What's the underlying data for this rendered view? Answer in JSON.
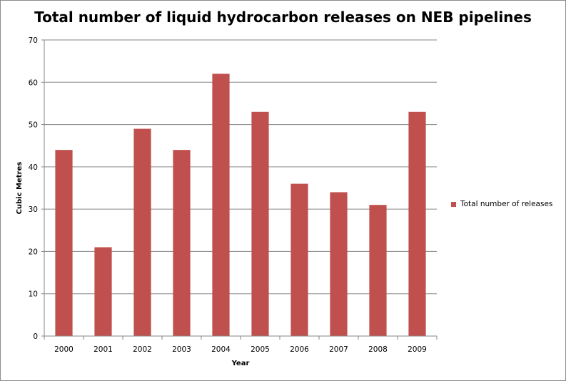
{
  "chart_data": {
    "type": "bar",
    "title": "Total number of liquid hydrocarbon releases on NEB pipelines",
    "xlabel": "Year",
    "ylabel": "Cubic Metres",
    "categories": [
      "2000",
      "2001",
      "2002",
      "2003",
      "2004",
      "2005",
      "2006",
      "2007",
      "2008",
      "2009"
    ],
    "series": [
      {
        "name": "Total number of releases",
        "values": [
          44,
          21,
          49,
          44,
          62,
          53,
          36,
          34,
          31,
          53
        ],
        "color": "#c0504d"
      }
    ],
    "ylim": [
      0,
      70
    ],
    "yticks": [
      0,
      10,
      20,
      30,
      40,
      50,
      60,
      70
    ],
    "grid": true,
    "legend": "right"
  }
}
